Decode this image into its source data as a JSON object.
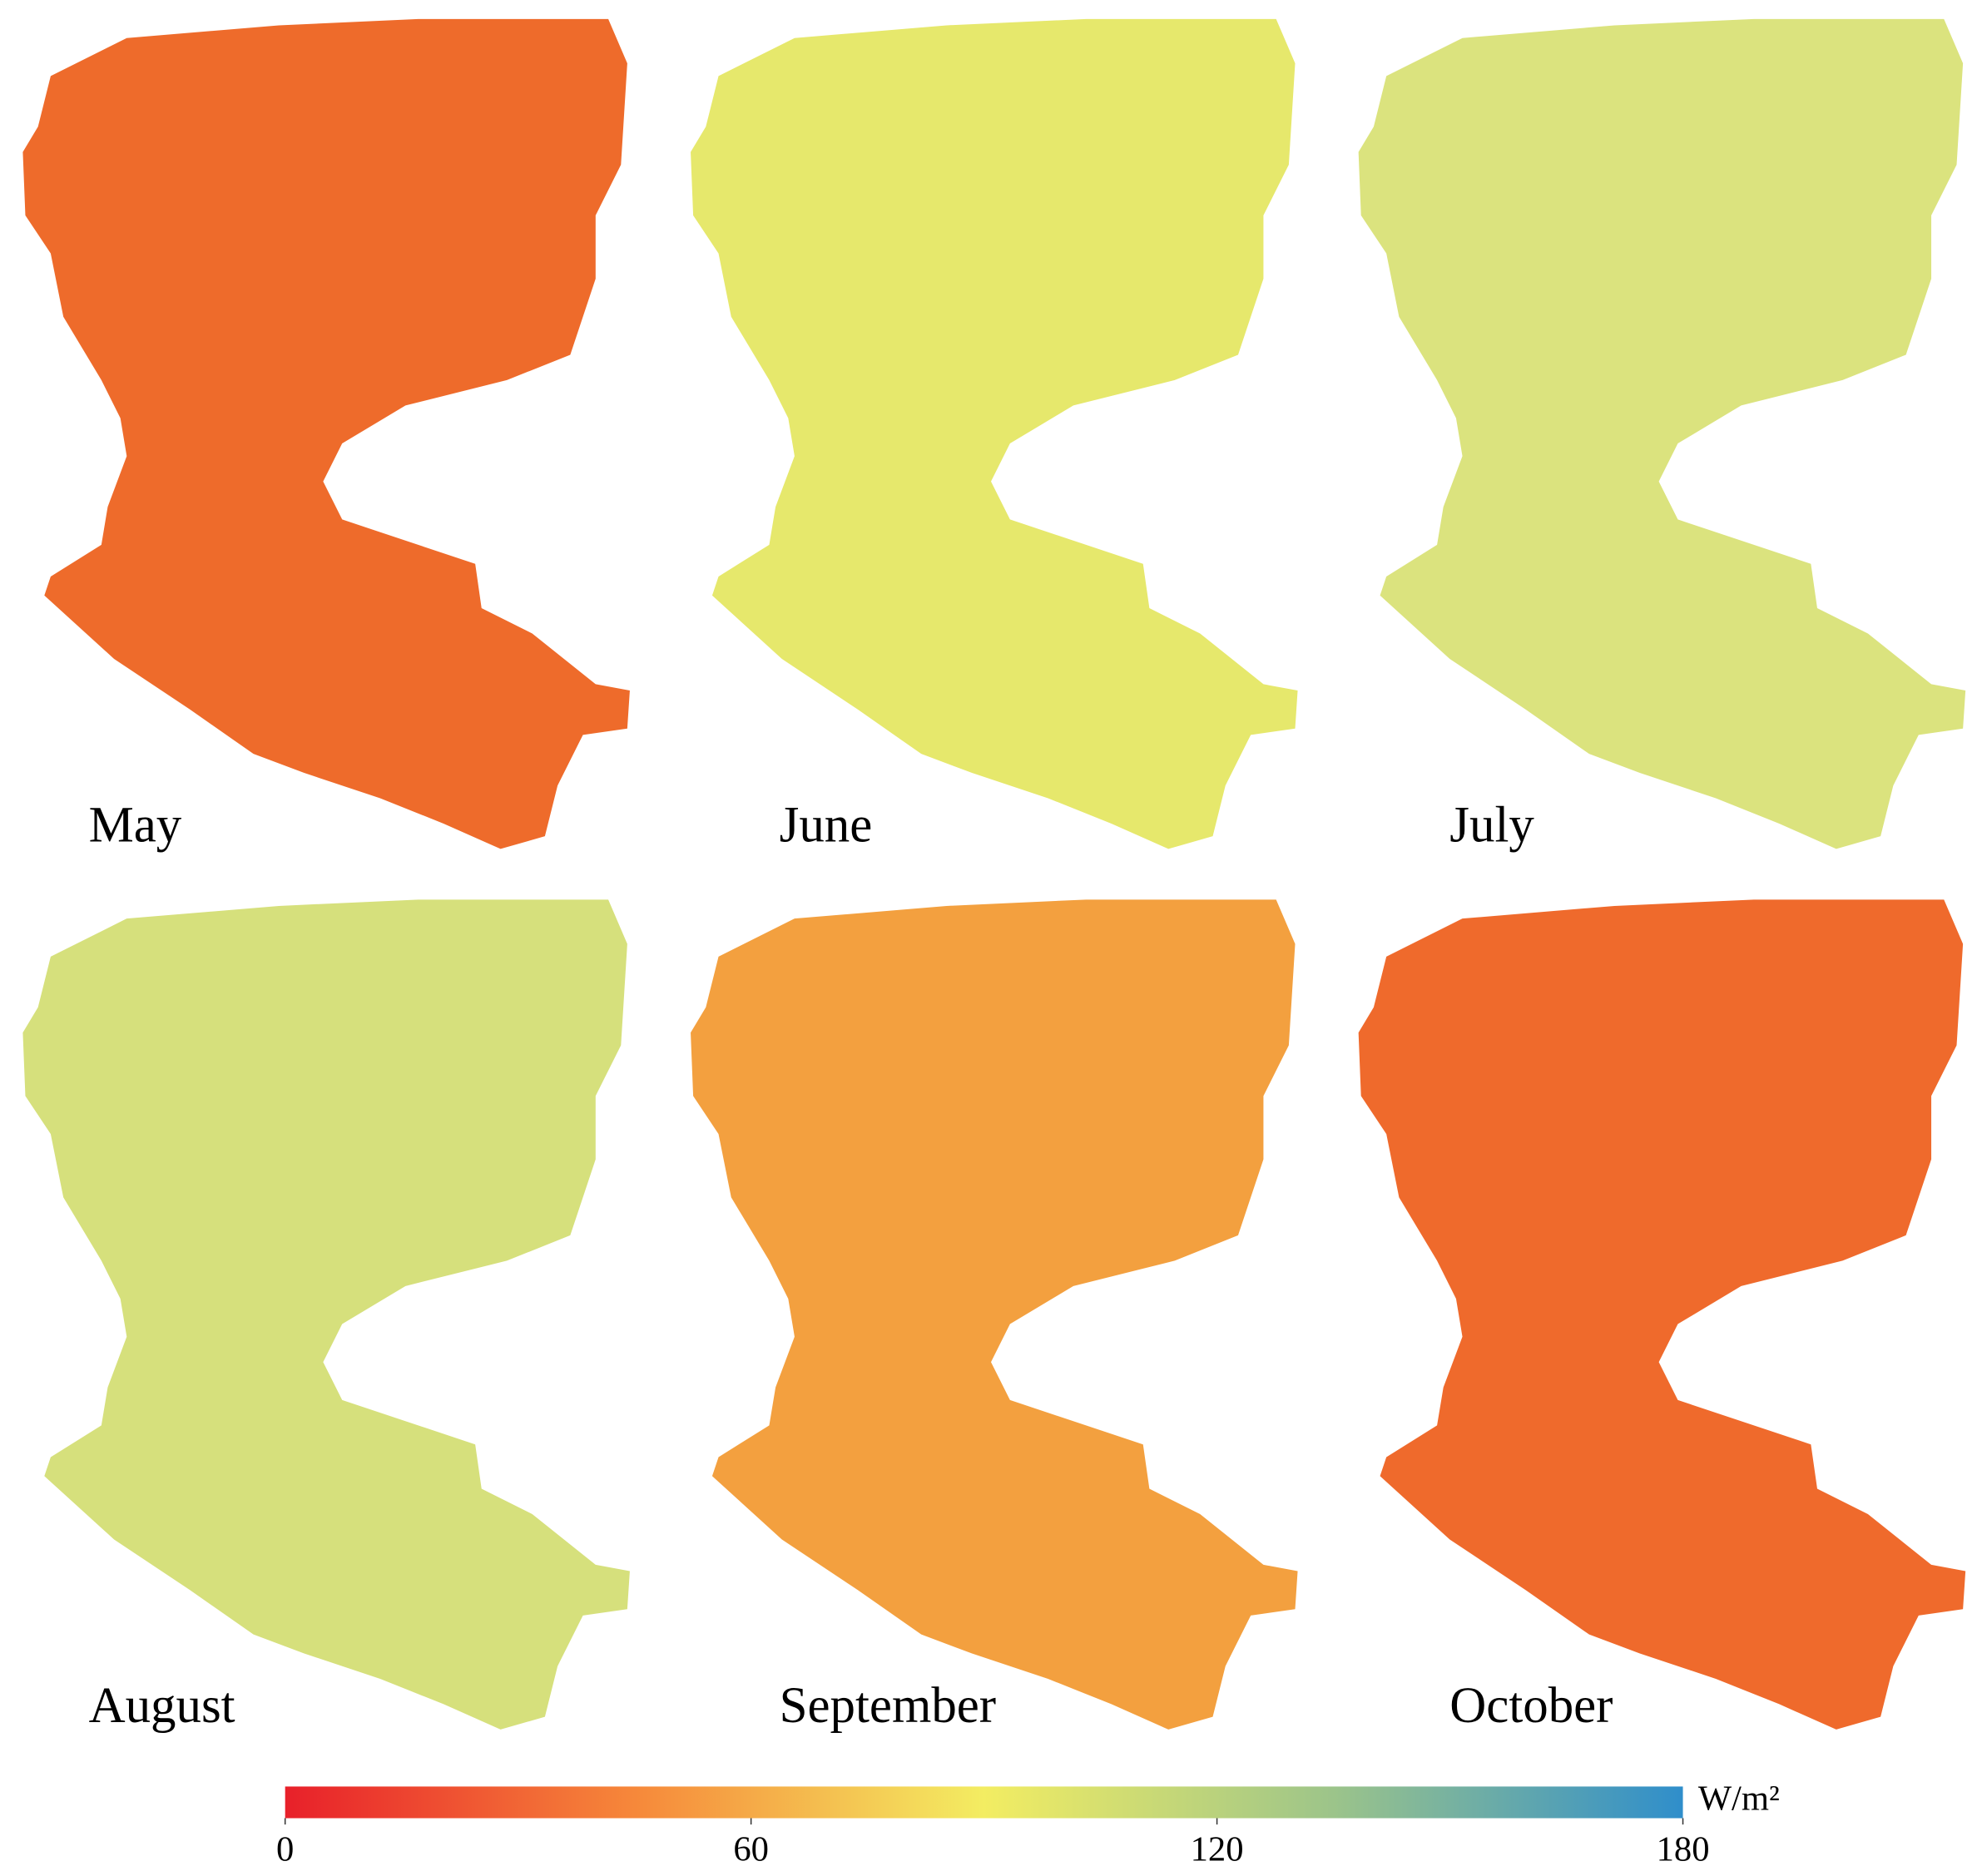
{
  "panels": [
    {
      "label": "May",
      "color": "#ee6b2b"
    },
    {
      "label": "June",
      "color": "#e6e86c"
    },
    {
      "label": "July",
      "color": "#dbe37e"
    },
    {
      "label": "August",
      "color": "#d6e07c"
    },
    {
      "label": "September",
      "color": "#f3a03f"
    },
    {
      "label": "October",
      "color": "#ef6a2c"
    }
  ],
  "colorbar": {
    "unit": "W/m²",
    "range": [
      0,
      180
    ],
    "ticks": [
      0,
      60,
      120,
      180
    ],
    "colors": [
      "#e8202a",
      "#f6883a",
      "#f3ed62",
      "#9cc48a",
      "#2f8ecb"
    ]
  }
}
